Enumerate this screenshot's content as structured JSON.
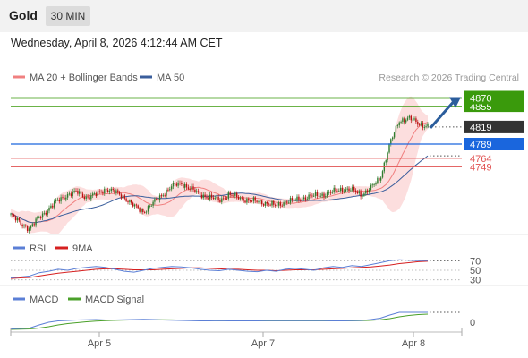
{
  "header": {
    "instrument": "Gold",
    "timeframe": "30 MIN"
  },
  "datetime": "Wednesday, April 8, 2026 4:12:44 AM CET",
  "chart_data": {
    "type": "candlestick",
    "instrument": "Gold",
    "timeframe": "30 MIN",
    "copyright": "Research © 2026 Trading Central",
    "legend": [
      {
        "name": "MA 20 + Bollinger Bands",
        "color": "#f08080"
      },
      {
        "name": "MA 50",
        "color": "#3a5e9c"
      }
    ],
    "x_ticks": [
      "Apr 5",
      "Apr 7",
      "Apr 8"
    ],
    "price_range": [
      4630,
      4885
    ],
    "price_levels": [
      {
        "value": 4870,
        "kind": "resistance",
        "color": "#3a9a0c"
      },
      {
        "value": 4855,
        "kind": "resistance",
        "color": "#3a9a0c"
      },
      {
        "value": 4819,
        "kind": "last_price",
        "color": "#333333"
      },
      {
        "value": 4789,
        "kind": "pivot",
        "color": "#1a66dd"
      },
      {
        "value": 4764,
        "kind": "support",
        "color": "#e05050"
      },
      {
        "value": 4749,
        "kind": "support",
        "color": "#e05050"
      }
    ],
    "price_path": [
      4665,
      4650,
      4640,
      4660,
      4675,
      4690,
      4700,
      4705,
      4695,
      4700,
      4710,
      4705,
      4695,
      4680,
      4670,
      4685,
      4700,
      4715,
      4720,
      4710,
      4700,
      4695,
      4690,
      4700,
      4695,
      4690,
      4688,
      4685,
      4680,
      4688,
      4690,
      4695,
      4698,
      4700,
      4705,
      4710,
      4708,
      4700,
      4712,
      4730,
      4790,
      4830,
      4835,
      4825,
      4820
    ],
    "rsi": {
      "legend": [
        {
          "name": "RSI",
          "color": "#5b7fd6"
        },
        {
          "name": "9MA",
          "color": "#d62020"
        }
      ],
      "levels": [
        70,
        50,
        30
      ],
      "range": [
        20,
        80
      ],
      "rsi_values": [
        34,
        36,
        38,
        45,
        48,
        52,
        50,
        54,
        56,
        58,
        56,
        52,
        48,
        46,
        50,
        54,
        56,
        58,
        57,
        55,
        52,
        50,
        49,
        52,
        50,
        48,
        47,
        50,
        48,
        52,
        54,
        52,
        50,
        55,
        58,
        56,
        60,
        58,
        62,
        66,
        70,
        72,
        71,
        70,
        70
      ],
      "ma_values": [
        33,
        34,
        35,
        38,
        41,
        44,
        46,
        48,
        50,
        52,
        53,
        53,
        52,
        51,
        51,
        51,
        52,
        53,
        54,
        55,
        55,
        54,
        53,
        52,
        52,
        51,
        50,
        50,
        49,
        50,
        51,
        51,
        51,
        52,
        53,
        54,
        55,
        56,
        57,
        59,
        61,
        64,
        66,
        68,
        69
      ]
    },
    "macd": {
      "legend": [
        {
          "name": "MACD",
          "color": "#5b7fd6"
        },
        {
          "name": "MACD Signal",
          "color": "#4aa02a"
        }
      ],
      "levels": [
        0
      ],
      "range": [
        -2,
        4
      ],
      "macd_values": [
        -1.5,
        -1.4,
        -1.3,
        -0.6,
        0.0,
        0.3,
        0.4,
        0.5,
        0.55,
        0.6,
        0.5,
        0.5,
        0.55,
        0.6,
        0.65,
        0.6,
        0.5,
        0.45,
        0.4,
        0.35,
        0.3,
        0.3,
        0.35,
        0.3,
        0.3,
        0.3,
        0.3,
        0.35,
        0.35,
        0.35,
        0.35,
        0.35,
        0.35,
        0.35,
        0.3,
        0.3,
        0.35,
        0.4,
        0.6,
        0.9,
        1.6,
        2.2,
        2.2,
        2.2,
        2.2
      ],
      "signal_values": [
        -1.6,
        -1.55,
        -1.5,
        -1.3,
        -1.0,
        -0.6,
        -0.3,
        -0.1,
        0.1,
        0.25,
        0.35,
        0.42,
        0.48,
        0.52,
        0.55,
        0.56,
        0.55,
        0.52,
        0.48,
        0.44,
        0.4,
        0.37,
        0.35,
        0.34,
        0.33,
        0.32,
        0.32,
        0.32,
        0.33,
        0.33,
        0.33,
        0.33,
        0.33,
        0.33,
        0.33,
        0.32,
        0.33,
        0.35,
        0.42,
        0.55,
        0.8,
        1.2,
        1.5,
        1.7,
        1.8
      ]
    }
  }
}
